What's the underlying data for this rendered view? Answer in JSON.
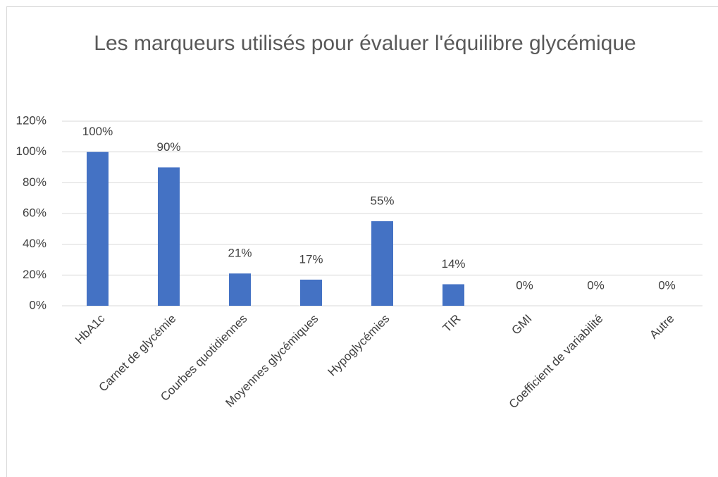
{
  "chart_data": {
    "type": "bar",
    "title": "Les marqueurs utilisés pour évaluer l'équilibre glycémique",
    "categories": [
      "HbA1c",
      "Carnet de glycémie",
      "Courbes quotidiennes",
      "Moyennes glycémiques",
      "Hypoglycémies",
      "TIR",
      "GMI",
      "Coefficient de variabilité",
      "Autre"
    ],
    "values": [
      100,
      90,
      21,
      17,
      55,
      14,
      0,
      0,
      0
    ],
    "value_labels": [
      "100%",
      "90%",
      "21%",
      "17%",
      "55%",
      "14%",
      "0%",
      "0%",
      "0%"
    ],
    "color": "#4472c4",
    "ylim": [
      0,
      120
    ],
    "yticks": [
      {
        "value": 0,
        "label": "0%"
      },
      {
        "value": 20,
        "label": "20%"
      },
      {
        "value": 40,
        "label": "40%"
      },
      {
        "value": 60,
        "label": "60%"
      },
      {
        "value": 80,
        "label": "80%"
      },
      {
        "value": 100,
        "label": "100%"
      },
      {
        "value": 120,
        "label": "120%"
      }
    ],
    "grid": true
  }
}
